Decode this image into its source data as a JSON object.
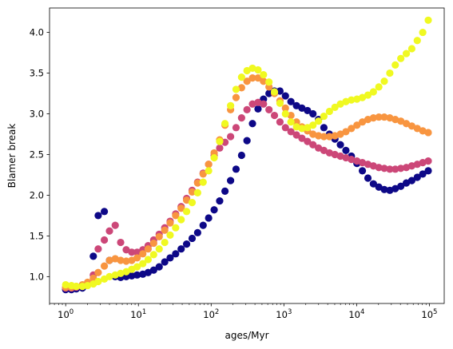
{
  "chart_data": {
    "type": "scatter",
    "title": "",
    "xlabel": "ages/Myr",
    "ylabel": "Blamer break",
    "xscale": "log",
    "xlim": [
      0.6,
      160000
    ],
    "ylim": [
      0.67,
      4.3
    ],
    "grid": false,
    "x_ticks": [
      {
        "value": 1,
        "base": "10",
        "exp": "0"
      },
      {
        "value": 10,
        "base": "10",
        "exp": "1"
      },
      {
        "value": 100,
        "base": "10",
        "exp": "2"
      },
      {
        "value": 1000,
        "base": "10",
        "exp": "3"
      },
      {
        "value": 10000,
        "base": "10",
        "exp": "4"
      },
      {
        "value": 100000,
        "base": "10",
        "exp": "5"
      }
    ],
    "y_ticks": [
      {
        "value": 1.0,
        "label": "1.0"
      },
      {
        "value": 1.5,
        "label": "1.5"
      },
      {
        "value": 2.0,
        "label": "2.0"
      },
      {
        "value": 2.5,
        "label": "2.5"
      },
      {
        "value": 3.0,
        "label": "3.0"
      },
      {
        "value": 3.5,
        "label": "3.5"
      },
      {
        "value": 4.0,
        "label": "4.0"
      }
    ],
    "x": [
      1.0,
      1.2,
      1.4,
      1.7,
      2.0,
      2.4,
      2.8,
      3.4,
      4.0,
      4.8,
      5.7,
      6.8,
      8.1,
      9.6,
      11.5,
      13.6,
      16.2,
      19.3,
      23.0,
      27.3,
      32.5,
      38.7,
      46.0,
      54.8,
      65.2,
      77.6,
      92.3,
      110,
      131,
      155,
      185,
      220,
      262,
      311,
      370,
      441,
      524,
      624,
      742,
      883,
      1050,
      1250,
      1490,
      1770,
      2110,
      2510,
      2990,
      3550,
      4230,
      5030,
      5980,
      7120,
      8470,
      10100,
      12000,
      14300,
      17000,
      20200,
      24000,
      28600,
      34000,
      40500,
      48200,
      57300,
      68200,
      81100,
      96500
    ],
    "series": [
      {
        "color": "#0d0887",
        "values": [
          0.84,
          0.84,
          0.85,
          0.86,
          0.9,
          1.25,
          1.75,
          1.8,
          1.2,
          1.0,
          0.99,
          1.0,
          1.01,
          1.02,
          1.03,
          1.05,
          1.08,
          1.12,
          1.18,
          1.23,
          1.28,
          1.34,
          1.4,
          1.47,
          1.54,
          1.63,
          1.72,
          1.82,
          1.93,
          2.05,
          2.18,
          2.32,
          2.49,
          2.67,
          2.88,
          3.06,
          3.18,
          3.25,
          3.28,
          3.28,
          3.22,
          3.15,
          3.1,
          3.07,
          3.04,
          3.0,
          2.93,
          2.83,
          2.75,
          2.69,
          2.62,
          2.55,
          2.48,
          2.39,
          2.3,
          2.21,
          2.14,
          2.1,
          2.07,
          2.06,
          2.08,
          2.11,
          2.15,
          2.18,
          2.22,
          2.26,
          2.3
        ]
      },
      {
        "color": "#cc4778",
        "values": [
          0.86,
          0.86,
          0.87,
          0.88,
          0.92,
          1.02,
          1.34,
          1.45,
          1.56,
          1.63,
          1.42,
          1.33,
          1.3,
          1.3,
          1.33,
          1.38,
          1.45,
          1.52,
          1.6,
          1.68,
          1.77,
          1.86,
          1.96,
          2.06,
          2.16,
          2.27,
          2.38,
          2.49,
          2.58,
          2.65,
          2.72,
          2.83,
          2.95,
          3.05,
          3.12,
          3.14,
          3.12,
          3.05,
          2.98,
          2.9,
          2.83,
          2.78,
          2.74,
          2.7,
          2.66,
          2.62,
          2.58,
          2.55,
          2.52,
          2.5,
          2.48,
          2.46,
          2.44,
          2.42,
          2.4,
          2.38,
          2.36,
          2.34,
          2.33,
          2.32,
          2.32,
          2.33,
          2.34,
          2.36,
          2.38,
          2.4,
          2.42
        ]
      },
      {
        "color": "#f89540",
        "values": [
          0.87,
          0.87,
          0.88,
          0.9,
          0.93,
          0.98,
          1.05,
          1.13,
          1.2,
          1.22,
          1.2,
          1.19,
          1.2,
          1.23,
          1.28,
          1.34,
          1.41,
          1.49,
          1.57,
          1.66,
          1.75,
          1.84,
          1.94,
          2.04,
          2.15,
          2.26,
          2.38,
          2.52,
          2.68,
          2.86,
          3.05,
          3.2,
          3.32,
          3.4,
          3.44,
          3.44,
          3.4,
          3.33,
          3.25,
          3.16,
          3.07,
          2.98,
          2.9,
          2.84,
          2.79,
          2.75,
          2.73,
          2.72,
          2.72,
          2.73,
          2.75,
          2.78,
          2.82,
          2.86,
          2.9,
          2.93,
          2.95,
          2.96,
          2.96,
          2.95,
          2.93,
          2.91,
          2.88,
          2.85,
          2.82,
          2.79,
          2.77
        ]
      },
      {
        "color": "#f0f921",
        "values": [
          0.9,
          0.89,
          0.88,
          0.88,
          0.89,
          0.91,
          0.94,
          0.97,
          1.0,
          1.02,
          1.04,
          1.06,
          1.09,
          1.12,
          1.16,
          1.21,
          1.27,
          1.34,
          1.42,
          1.51,
          1.6,
          1.7,
          1.8,
          1.91,
          2.03,
          2.16,
          2.3,
          2.46,
          2.66,
          2.88,
          3.1,
          3.3,
          3.45,
          3.53,
          3.56,
          3.54,
          3.48,
          3.39,
          3.27,
          3.13,
          3.0,
          2.9,
          2.84,
          2.82,
          2.83,
          2.86,
          2.91,
          2.97,
          3.03,
          3.08,
          3.12,
          3.15,
          3.17,
          3.18,
          3.2,
          3.23,
          3.27,
          3.33,
          3.4,
          3.5,
          3.6,
          3.68,
          3.74,
          3.8,
          3.9,
          4.0,
          4.15
        ]
      }
    ]
  }
}
